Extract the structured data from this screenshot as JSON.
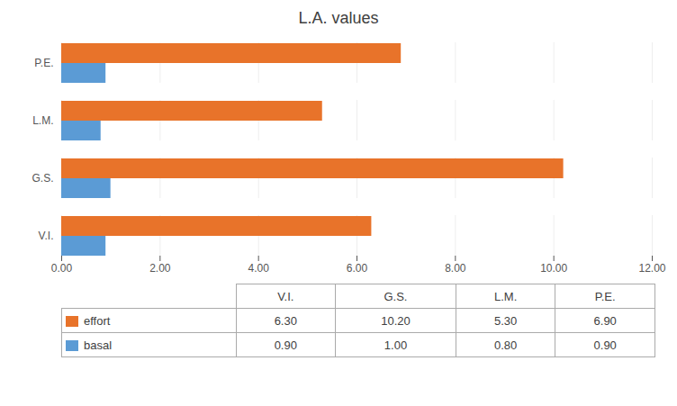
{
  "chart_data": {
    "type": "bar",
    "title": "L.A. values",
    "orientation": "horizontal",
    "categories": [
      "V.I.",
      "G.S.",
      "L.M.",
      "P.E."
    ],
    "series": [
      {
        "name": "effort",
        "color": "#E8732A",
        "values": [
          6.3,
          10.2,
          5.3,
          6.9
        ],
        "value_labels": [
          "6.30",
          "10.20",
          "5.30",
          "6.90"
        ]
      },
      {
        "name": "basal",
        "color": "#5B9BD5",
        "values": [
          0.9,
          1.0,
          0.8,
          0.9
        ],
        "value_labels": [
          "0.90",
          "1.00",
          "0.80",
          "0.90"
        ]
      }
    ],
    "xlim": [
      0,
      12.0
    ],
    "xticks": [
      {
        "value": 0.0,
        "label": "0.00"
      },
      {
        "value": 2.0,
        "label": "2.00"
      },
      {
        "value": 4.0,
        "label": "4.00"
      },
      {
        "value": 6.0,
        "label": "6.00"
      },
      {
        "value": 8.0,
        "label": "8.00"
      },
      {
        "value": 10.0,
        "label": "10.00"
      },
      {
        "value": 12.0,
        "label": "12.00"
      }
    ],
    "grid": true
  }
}
